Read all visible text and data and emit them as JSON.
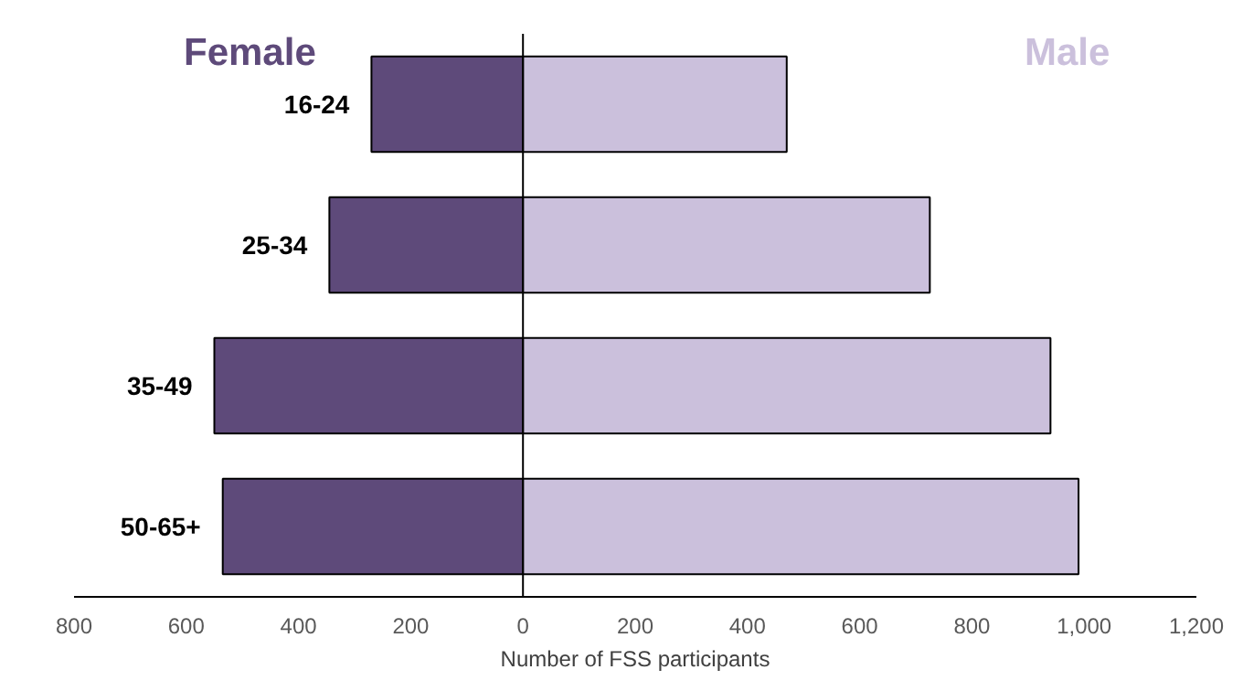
{
  "chart_data": {
    "type": "bar",
    "orientation": "horizontal",
    "stacked": true,
    "categories": [
      "16-24",
      "25-34",
      "35-49",
      "50-65+"
    ],
    "series": [
      {
        "name": "Female",
        "color": "#5e4a7a",
        "values": [
          -270,
          -345,
          -550,
          -535
        ]
      },
      {
        "name": "Male",
        "color": "#cbc0dc",
        "values": [
          470,
          725,
          940,
          990
        ]
      }
    ],
    "xlim": [
      -800,
      1200
    ],
    "xticks": [
      {
        "value": -800,
        "label": "800"
      },
      {
        "value": -600,
        "label": "600"
      },
      {
        "value": -400,
        "label": "400"
      },
      {
        "value": -200,
        "label": "200"
      },
      0,
      200,
      400,
      600,
      800,
      {
        "value": 1000,
        "label": "1,000"
      },
      {
        "value": 1200,
        "label": "1,200"
      }
    ],
    "xlabel": "Number of FSS participants",
    "ref_lines": [
      {
        "axis": "x",
        "value": 0,
        "color": "#000000"
      }
    ],
    "grid": false
  }
}
